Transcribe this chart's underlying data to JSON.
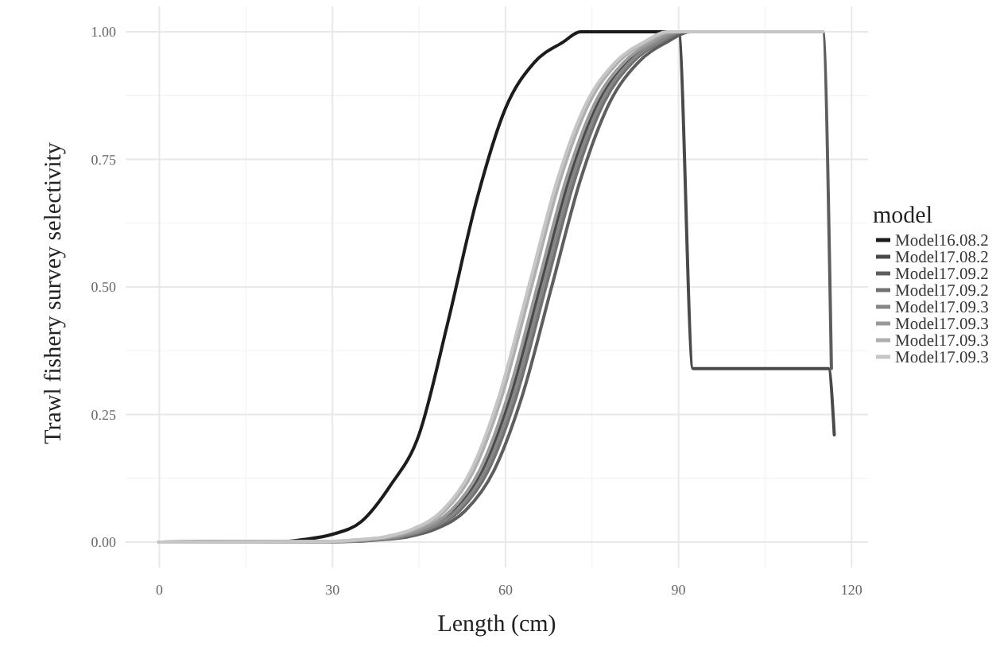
{
  "chart_data": {
    "type": "line",
    "xlabel": "Length (cm)",
    "ylabel": "Trawl fishery survey selectivity",
    "legend_title": "model",
    "xlim": [
      -5.85,
      122.85
    ],
    "ylim": [
      -0.05,
      1.05
    ],
    "xticks": [
      0,
      30,
      60,
      90,
      120
    ],
    "yticks": [
      {
        "value": 0,
        "label": "0.00"
      },
      {
        "value": 0.25,
        "label": "0.25"
      },
      {
        "value": 0.5,
        "label": "0.50"
      },
      {
        "value": 0.75,
        "label": "0.75"
      },
      {
        "value": 1,
        "label": "1.00"
      }
    ],
    "grid": true,
    "legend": "right",
    "line_style": "solid",
    "marker": "none",
    "series": [
      {
        "name": "Model16.08.2",
        "color": "#1c1c1c",
        "x": [
          10,
          20,
          25,
          30,
          35,
          40,
          45,
          50,
          55,
          60,
          65,
          70,
          73,
          115
        ],
        "values": [
          0,
          0,
          0.005,
          0.015,
          0.04,
          0.11,
          0.21,
          0.43,
          0.67,
          0.85,
          0.94,
          0.98,
          1,
          1
        ]
      },
      {
        "name": "Model17.08.2",
        "color": "#4a4a4a",
        "x": [
          0,
          31,
          36,
          41,
          46,
          51,
          56,
          61,
          66,
          71,
          76,
          81,
          86,
          90,
          92.5,
          116,
          117
        ],
        "values": [
          0,
          0.001,
          0.004,
          0.01,
          0.026,
          0.061,
          0.14,
          0.29,
          0.5,
          0.71,
          0.86,
          0.94,
          0.98,
          1,
          0.34,
          0.34,
          0.21
        ]
      },
      {
        "name": "Model17.09.2",
        "color": "#5e5e5e",
        "x": [
          0,
          33,
          38,
          43,
          48,
          53,
          58,
          63,
          68,
          73,
          78,
          83,
          88,
          92,
          115,
          116.5
        ],
        "values": [
          0,
          0.001,
          0.004,
          0.01,
          0.026,
          0.061,
          0.14,
          0.29,
          0.5,
          0.71,
          0.86,
          0.94,
          0.98,
          1,
          1,
          0.34
        ]
      },
      {
        "name": "Model17.09.2",
        "color": "#727272",
        "x": [
          0,
          32,
          37,
          42,
          47,
          52,
          57,
          62,
          67,
          72,
          77,
          82,
          87,
          91,
          115
        ],
        "values": [
          0,
          0.001,
          0.004,
          0.01,
          0.026,
          0.061,
          0.14,
          0.29,
          0.5,
          0.71,
          0.86,
          0.94,
          0.98,
          1,
          1
        ]
      },
      {
        "name": "Model17.09.3",
        "color": "#868686",
        "x": [
          0,
          31.5,
          36.5,
          41.5,
          46.5,
          51.5,
          56.5,
          61.5,
          66.5,
          71.5,
          76.5,
          81.5,
          86.5,
          90.5,
          115
        ],
        "values": [
          0,
          0.001,
          0.004,
          0.01,
          0.026,
          0.061,
          0.14,
          0.29,
          0.5,
          0.71,
          0.86,
          0.94,
          0.98,
          1,
          1
        ]
      },
      {
        "name": "Model17.09.3",
        "color": "#9a9a9a",
        "x": [
          0,
          30.5,
          35.5,
          40.5,
          45.5,
          50.5,
          55.5,
          60.5,
          65.5,
          70.5,
          75.5,
          80.5,
          85.5,
          89.5,
          115
        ],
        "values": [
          0,
          0.001,
          0.004,
          0.01,
          0.026,
          0.061,
          0.14,
          0.29,
          0.5,
          0.71,
          0.86,
          0.94,
          0.98,
          1,
          1
        ]
      },
      {
        "name": "Model17.09.3",
        "color": "#afafaf",
        "x": [
          0,
          29.5,
          34.5,
          39.5,
          44.5,
          49.5,
          54.5,
          59.5,
          64.5,
          69.5,
          74.5,
          79.5,
          84.5,
          88.5,
          115
        ],
        "values": [
          0,
          0.001,
          0.004,
          0.01,
          0.026,
          0.061,
          0.14,
          0.29,
          0.5,
          0.71,
          0.86,
          0.94,
          0.98,
          1,
          1
        ]
      },
      {
        "name": "Model17.09.3",
        "color": "#c6c6c6",
        "x": [
          0,
          29,
          34,
          39,
          44,
          49,
          54,
          59,
          64,
          69,
          74,
          79,
          84,
          88,
          115
        ],
        "values": [
          0,
          0.001,
          0.004,
          0.01,
          0.026,
          0.061,
          0.14,
          0.29,
          0.5,
          0.71,
          0.86,
          0.94,
          0.98,
          1,
          1
        ]
      }
    ]
  }
}
